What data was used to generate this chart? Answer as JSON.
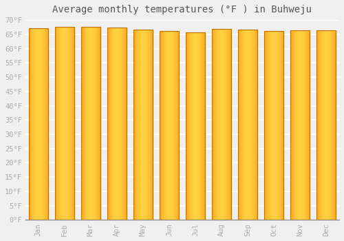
{
  "title": "Average monthly temperatures (°F ) in Buhweju",
  "months": [
    "Jan",
    "Feb",
    "Mar",
    "Apr",
    "May",
    "Jun",
    "Jul",
    "Aug",
    "Sep",
    "Oct",
    "Nov",
    "Dec"
  ],
  "values": [
    67.1,
    67.6,
    67.6,
    67.3,
    66.7,
    66.2,
    65.7,
    66.9,
    66.7,
    66.2,
    66.4,
    66.4
  ],
  "bar_color_center": "#FFD040",
  "bar_color_edge": "#F0900A",
  "bar_border_color": "#C07000",
  "background_color": "#f0f0f0",
  "grid_color": "#ffffff",
  "ylim": [
    0,
    70
  ],
  "yticks": [
    0,
    5,
    10,
    15,
    20,
    25,
    30,
    35,
    40,
    45,
    50,
    55,
    60,
    65,
    70
  ],
  "ytick_labels": [
    "0°F",
    "5°F",
    "10°F",
    "15°F",
    "20°F",
    "25°F",
    "30°F",
    "35°F",
    "40°F",
    "45°F",
    "50°F",
    "55°F",
    "60°F",
    "65°F",
    "70°F"
  ],
  "title_fontsize": 10,
  "tick_fontsize": 7.5,
  "tick_color": "#aaaaaa",
  "title_color": "#555555",
  "bar_width": 0.75
}
